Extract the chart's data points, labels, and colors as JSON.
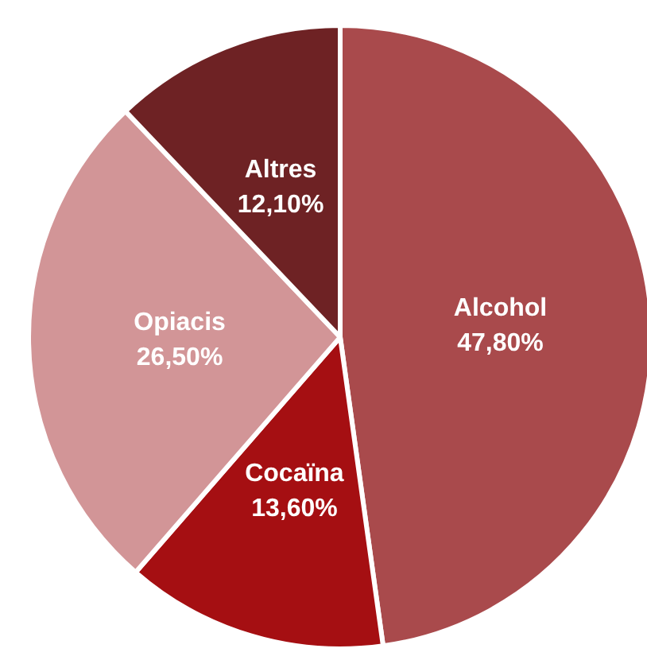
{
  "chart_data": {
    "type": "pie",
    "categories": [
      "Alcohol",
      "Cocaïna",
      "Opiacis",
      "Altres"
    ],
    "values": [
      47.8,
      13.6,
      26.5,
      12.1
    ],
    "value_labels": [
      "47,80%",
      "13,60%",
      "26,50%",
      "12,10%"
    ],
    "colors": [
      "#a94a4c",
      "#a50f12",
      "#d29597",
      "#6e2224"
    ],
    "legend": false
  }
}
